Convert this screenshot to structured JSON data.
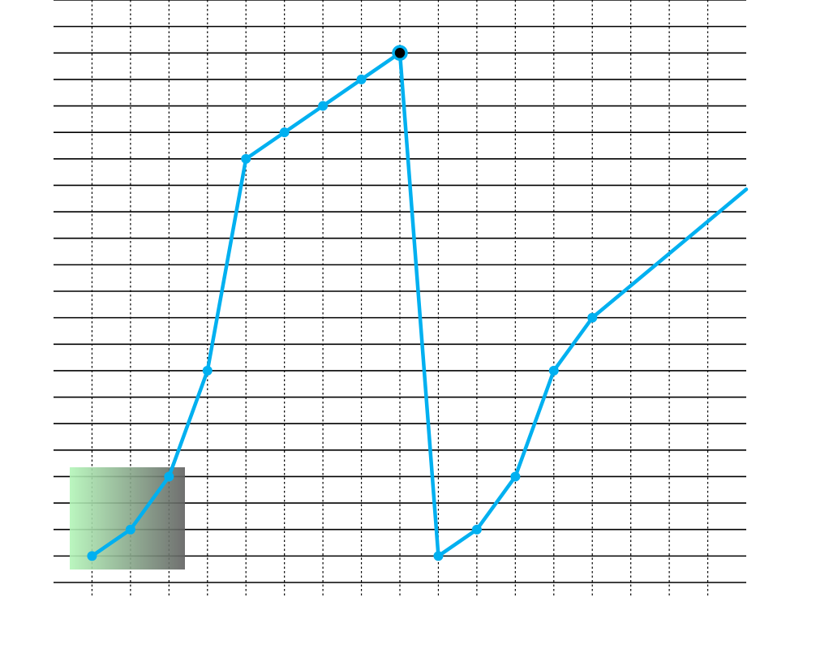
{
  "chart_data": {
    "type": "line",
    "title": "",
    "xlabel": "",
    "ylabel": "",
    "grid": true,
    "xlim": [
      0,
      17
    ],
    "ylim": [
      0,
      22
    ],
    "series": [
      {
        "x": [
          1,
          2,
          3,
          4,
          5,
          6,
          7,
          8,
          9,
          10,
          11,
          12,
          13,
          14,
          17.3
        ],
        "values": [
          1,
          2,
          4,
          8,
          16,
          17,
          18,
          19,
          20,
          1,
          2,
          4,
          8,
          10,
          14
        ]
      }
    ],
    "highlight_index": 8,
    "colors": {
      "line": "#00b0f0",
      "highlight_marker": "#000000",
      "overlay_gradient_start": "#b3f5b8",
      "overlay_gradient_end": "#606060"
    }
  }
}
